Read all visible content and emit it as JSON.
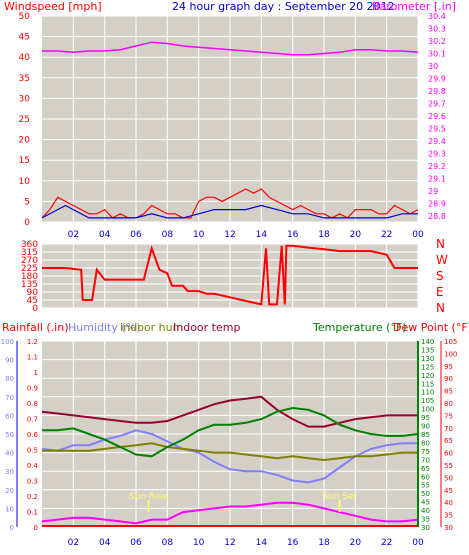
{
  "title": "24 hour graph day : September 20 2012",
  "labels": {
    "windspeed": "Windspeed [mph]",
    "barometer": "Barometer [.in]",
    "rainfall": "Rainfall (.in)",
    "humidity": "Humidity (%)",
    "indoor_hum": "Indoor hum",
    "indoor_temp": "Indoor temp",
    "temperature": "Temperature (°F)",
    "dewpoint": "Dew Point (°F)",
    "sunrise": "Sun Rise",
    "sunset": "Sun Set"
  },
  "colors": {
    "wind_gust": "#ff0000",
    "wind_avg": "#0000cc",
    "barometer": "#ff00ff",
    "winddir": "#ff0000",
    "rain": "#ff0000",
    "humidity": "#8080ff",
    "indoor_hum": "#808000",
    "indoor_temp": "#990033",
    "temperature": "#008000",
    "dewpoint": "#ff0000",
    "solar": "#ff00ff",
    "sun_marker": "#ffff66",
    "bg": "#d4d0c8",
    "grid": "#ffffff",
    "grid_x": "#808080"
  },
  "x_ticks": [
    "02",
    "04",
    "06",
    "08",
    "10",
    "12",
    "14",
    "16",
    "18",
    "20",
    "22",
    "00"
  ],
  "chart_data": [
    {
      "type": "line",
      "name": "wind-barometer",
      "xlim": [
        0,
        24
      ],
      "ylim": [
        0,
        50
      ],
      "y_ticks": [
        0,
        5,
        10,
        15,
        20,
        25,
        30,
        35,
        40,
        45,
        50
      ],
      "y2lim": [
        28.75,
        30.4
      ],
      "y2_ticks": [
        "28.8",
        "28.9",
        "29",
        "29.1",
        "29.2",
        "29.3",
        "29.4",
        "29.5",
        "29.6",
        "29.7",
        "29.8",
        "29.9",
        "30",
        "30.1",
        "30.2",
        "30.3",
        "30.4"
      ],
      "series": [
        {
          "name": "Windspeed [mph]",
          "axis": "left",
          "x": [
            0,
            0.5,
            1,
            1.5,
            2,
            2.5,
            3,
            3.5,
            4,
            4.5,
            5,
            5.5,
            6,
            6.5,
            7,
            7.5,
            8,
            8.5,
            9,
            9.5,
            10,
            10.5,
            11,
            11.5,
            12,
            12.5,
            13,
            13.5,
            14,
            14.5,
            15,
            15.5,
            16,
            16.5,
            17,
            17.5,
            18,
            18.5,
            19,
            19.5,
            20,
            20.5,
            21,
            21.5,
            22,
            22.5,
            23,
            23.5,
            24
          ],
          "y": [
            1,
            3,
            6,
            5,
            4,
            3,
            2,
            2,
            3,
            1,
            2,
            1,
            1,
            2,
            4,
            3,
            2,
            2,
            1,
            1,
            5,
            6,
            6,
            5,
            6,
            7,
            8,
            7,
            8,
            6,
            5,
            4,
            3,
            4,
            3,
            2,
            2,
            1,
            2,
            1,
            3,
            3,
            3,
            2,
            2,
            4,
            3,
            2,
            3
          ]
        },
        {
          "name": "Wind avg",
          "axis": "left",
          "x": [
            0,
            1,
            1.5,
            2,
            3,
            4,
            5,
            6,
            7,
            8,
            9,
            10,
            11,
            12,
            13,
            14,
            15,
            16,
            17,
            18,
            19,
            20,
            21,
            22,
            23,
            24
          ],
          "y": [
            1,
            3,
            4,
            3,
            1,
            1,
            1,
            1,
            2,
            1,
            1,
            2,
            3,
            3,
            3,
            4,
            3,
            2,
            2,
            1,
            1,
            1,
            1,
            1,
            2,
            2
          ]
        },
        {
          "name": "Barometer [.in]",
          "axis": "right",
          "x": [
            0,
            1,
            2,
            3,
            4,
            5,
            6,
            7,
            8,
            9,
            10,
            11,
            12,
            13,
            14,
            15,
            16,
            17,
            18,
            19,
            20,
            21,
            22,
            23,
            24
          ],
          "y": [
            30.12,
            30.12,
            30.11,
            30.12,
            30.12,
            30.13,
            30.16,
            30.19,
            30.18,
            30.16,
            30.15,
            30.14,
            30.13,
            30.12,
            30.11,
            30.1,
            30.09,
            30.09,
            30.1,
            30.11,
            30.13,
            30.13,
            30.12,
            30.12,
            30.11
          ]
        }
      ]
    },
    {
      "type": "line",
      "name": "wind-direction",
      "xlim": [
        0,
        24
      ],
      "ylim": [
        0,
        360
      ],
      "y_ticks": [
        0,
        45,
        90,
        135,
        180,
        225,
        270,
        315,
        360
      ],
      "compass": [
        "N",
        "W",
        "S",
        "E",
        "N"
      ],
      "series": [
        {
          "name": "Wind direction",
          "x": [
            0,
            1.5,
            2.5,
            2.6,
            3.2,
            3.5,
            4,
            4.5,
            6.5,
            7,
            7.5,
            8,
            8.3,
            9,
            9.3,
            10,
            10.5,
            11,
            12,
            13,
            14,
            14.3,
            14.5,
            15,
            15.3,
            15.5,
            15.6,
            16,
            17,
            18,
            19,
            20,
            21,
            22,
            22.5,
            23,
            24
          ],
          "y": [
            225,
            225,
            215,
            45,
            45,
            215,
            160,
            160,
            160,
            335,
            215,
            195,
            125,
            125,
            95,
            95,
            80,
            80,
            60,
            40,
            20,
            335,
            20,
            20,
            350,
            20,
            350,
            350,
            340,
            330,
            320,
            320,
            320,
            300,
            225,
            225,
            225
          ]
        }
      ]
    },
    {
      "type": "line",
      "name": "rain-humidity-temperature",
      "xlim": [
        0,
        24
      ],
      "ylim": [
        0,
        100
      ],
      "y_ticks": [
        0,
        10,
        20,
        30,
        40,
        50,
        60,
        70,
        80,
        90,
        100
      ],
      "rain_ticks": [
        "0",
        "0.1",
        "0.2",
        "0.3",
        "0.4",
        "0.5",
        "0.6",
        "0.7",
        "0.8",
        "0.9",
        "1",
        "1.1",
        "1.2"
      ],
      "temp_ticks": [
        "30",
        "35",
        "40",
        "45",
        "50",
        "55",
        "60",
        "65",
        "70",
        "75",
        "80",
        "85",
        "90",
        "95",
        "100",
        "105",
        "110",
        "115",
        "120",
        "125",
        "130",
        "135",
        "140"
      ],
      "dew_ticks": [
        "30",
        "35",
        "40",
        "45",
        "50",
        "55",
        "60",
        "65",
        "70",
        "75",
        "80",
        "85",
        "90",
        "95",
        "100",
        "105"
      ],
      "series": [
        {
          "name": "Indoor temp",
          "x": [
            0,
            1,
            2,
            3,
            4,
            5,
            6,
            7,
            8,
            9,
            10,
            11,
            12,
            13,
            14,
            15,
            16,
            17,
            18,
            19,
            20,
            21,
            22,
            23,
            24
          ],
          "y": [
            62,
            61,
            60,
            59,
            58,
            57,
            56,
            56,
            57,
            60,
            63,
            66,
            68,
            69,
            70,
            63,
            58,
            54,
            54,
            56,
            58,
            59,
            60,
            60,
            60
          ]
        },
        {
          "name": "Humidity (%)",
          "x": [
            0,
            1,
            2,
            3,
            4,
            5,
            6,
            7,
            8,
            9,
            10,
            11,
            12,
            13,
            14,
            15,
            16,
            17,
            18,
            19,
            20,
            21,
            22,
            23,
            24
          ],
          "y": [
            42,
            41,
            44,
            44,
            47,
            49,
            52,
            50,
            46,
            42,
            40,
            35,
            31,
            30,
            30,
            28,
            25,
            24,
            26,
            32,
            38,
            42,
            44,
            45,
            45
          ]
        },
        {
          "name": "Indoor hum",
          "x": [
            0,
            1,
            2,
            3,
            4,
            5,
            6,
            7,
            8,
            9,
            10,
            11,
            12,
            13,
            14,
            15,
            16,
            17,
            18,
            19,
            20,
            21,
            22,
            23,
            24
          ],
          "y": [
            41,
            41,
            41,
            41,
            42,
            43,
            44,
            45,
            43,
            42,
            41,
            40,
            40,
            39,
            38,
            37,
            38,
            37,
            36,
            37,
            38,
            38,
            39,
            40,
            40
          ]
        },
        {
          "name": "Temperature (°F)",
          "x": [
            0,
            1,
            2,
            3,
            4,
            5,
            6,
            7,
            8,
            9,
            10,
            11,
            12,
            13,
            14,
            15,
            16,
            17,
            18,
            19,
            20,
            21,
            22,
            23,
            24
          ],
          "y": [
            52,
            52,
            53,
            50,
            47,
            43,
            39,
            38,
            43,
            47,
            52,
            55,
            55,
            56,
            58,
            62,
            64,
            63,
            60,
            55,
            52,
            50,
            49,
            49,
            50
          ]
        },
        {
          "name": "Solar",
          "x": [
            0,
            1,
            2,
            3,
            4,
            5,
            6,
            7,
            8,
            9,
            10,
            11,
            12,
            13,
            14,
            15,
            16,
            17,
            18,
            19,
            20,
            21,
            22,
            23,
            24
          ],
          "y": [
            3,
            4,
            5,
            5,
            4,
            3,
            2,
            4,
            4,
            8,
            9,
            10,
            11,
            11,
            12,
            13,
            13,
            12,
            10,
            8,
            6,
            4,
            3,
            3,
            4
          ]
        }
      ],
      "markers": [
        {
          "label": "Sun Rise",
          "x": 6.8
        },
        {
          "label": "Sun Set",
          "x": 19.0
        }
      ]
    }
  ]
}
